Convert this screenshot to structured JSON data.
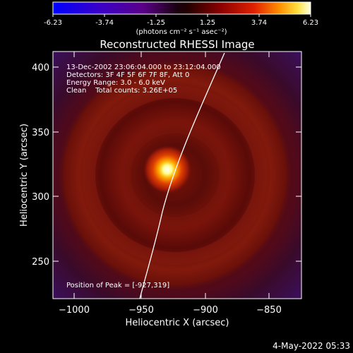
{
  "colorbar": {
    "tick_labels": [
      "-6.23",
      "-3.74",
      "-1.25",
      "1.25",
      "3.74",
      "6.23"
    ],
    "unit_label": "(photons cm⁻² s⁻¹ asec⁻²)"
  },
  "title": "Reconstructed RHESSI Image",
  "info": {
    "time_range": "13-Dec-2002 23:06:04.000 to 23:12:04.000",
    "detectors": "Detectors: 3F 4F 5F 6F 7F 8F, Att 0",
    "energy_range": "Energy Range: 3.0 - 6.0 keV",
    "method_counts": "Clean    Total counts: 3.26E+05"
  },
  "peak_label": "Position of Peak = [-927,319]",
  "axes": {
    "xlabel": "Heliocentric X (arcsec)",
    "ylabel": "Heliocentric Y (arcsec)",
    "x_ticks": [
      "−1000",
      "−950",
      "−900",
      "−850"
    ],
    "y_ticks": [
      "400",
      "350",
      "300",
      "250"
    ]
  },
  "timestamp": "4-May-2022 05:33",
  "colors": {
    "background": "#000000",
    "frame": "#ffffff",
    "limb_line": "#ffffff"
  }
}
